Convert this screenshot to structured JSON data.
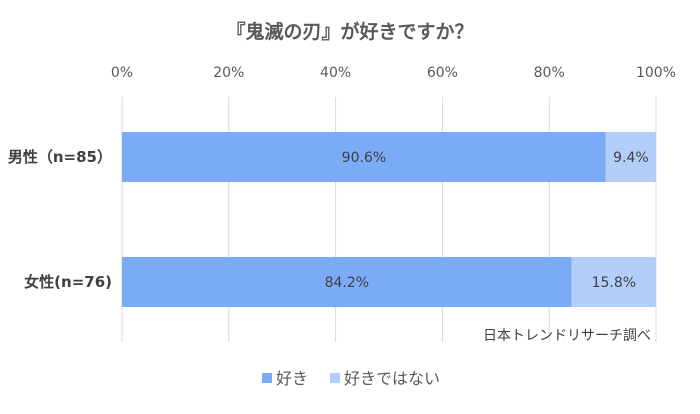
{
  "chart_data": {
    "type": "bar",
    "orientation": "horizontal",
    "stacked": "percent",
    "title": "『鬼滅の刃』が好きですか？",
    "categories": [
      "男性（n=85）",
      "女性(n=76)"
    ],
    "series": [
      {
        "name": "好き",
        "values": [
          90.6,
          84.2
        ],
        "labels": [
          "90.6%",
          "84.2%"
        ],
        "color": "#7baaf7"
      },
      {
        "name": "好きではない",
        "values": [
          9.4,
          15.8
        ],
        "labels": [
          "9.4%",
          "15.8%"
        ],
        "color": "#b4cefa"
      }
    ],
    "xlim": [
      0,
      100
    ],
    "xticks": [
      "0%",
      "20%",
      "40%",
      "60%",
      "80%",
      "100%"
    ],
    "grid": true,
    "legend_position": "bottom",
    "annotation": "日本トレンドリサーチ調べ"
  }
}
